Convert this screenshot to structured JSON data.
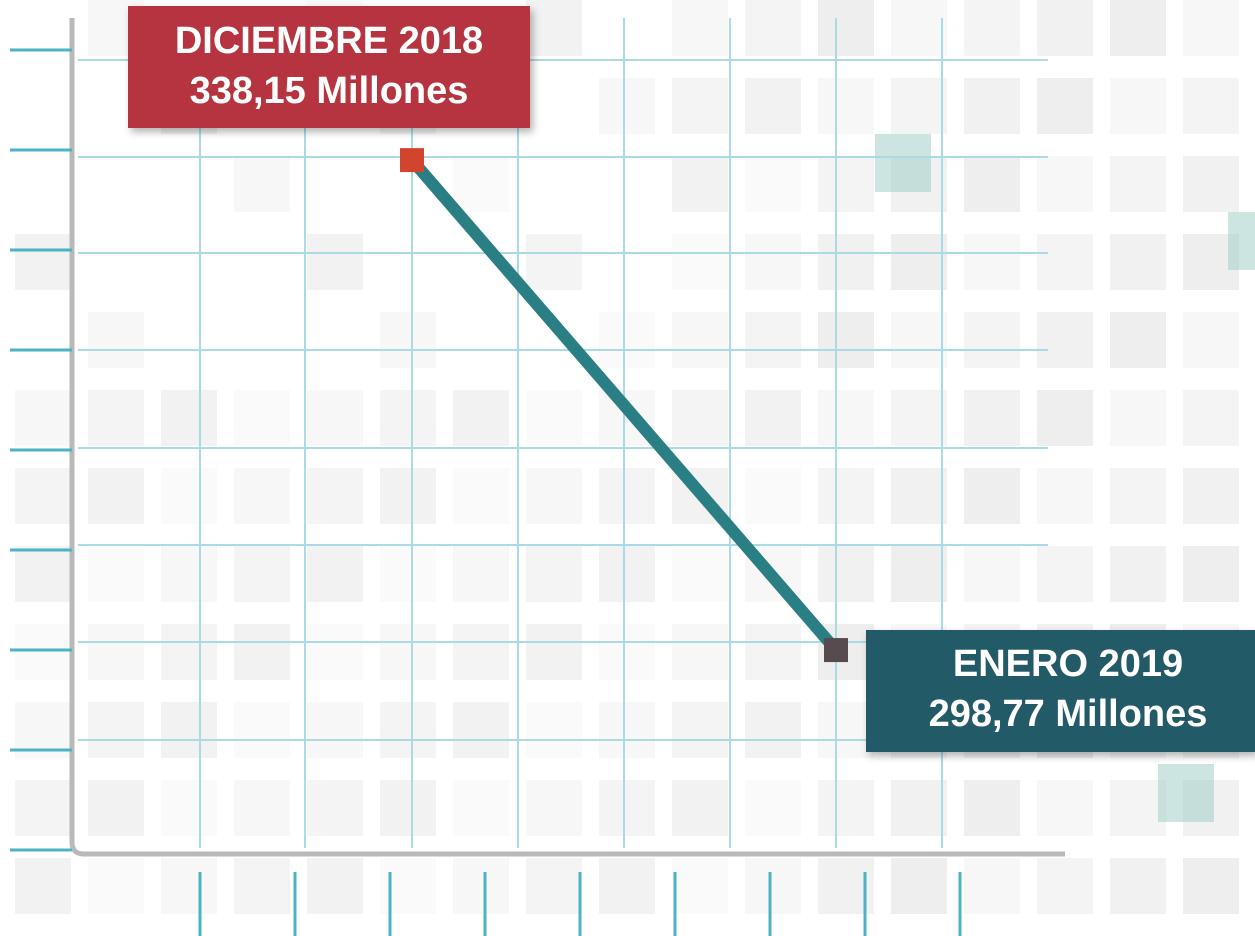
{
  "chart_data": {
    "type": "line",
    "categories": [
      "DICIEMBRE 2018",
      "ENERO 2019"
    ],
    "values": [
      338.15,
      298.77
    ],
    "value_labels": [
      "338,15 Millones",
      "298,77 Millones"
    ],
    "color": "#2a7f85",
    "point_colors": [
      "#d2442e",
      "#574b4f"
    ],
    "ylim": [
      282.7,
      347.0
    ]
  }
}
